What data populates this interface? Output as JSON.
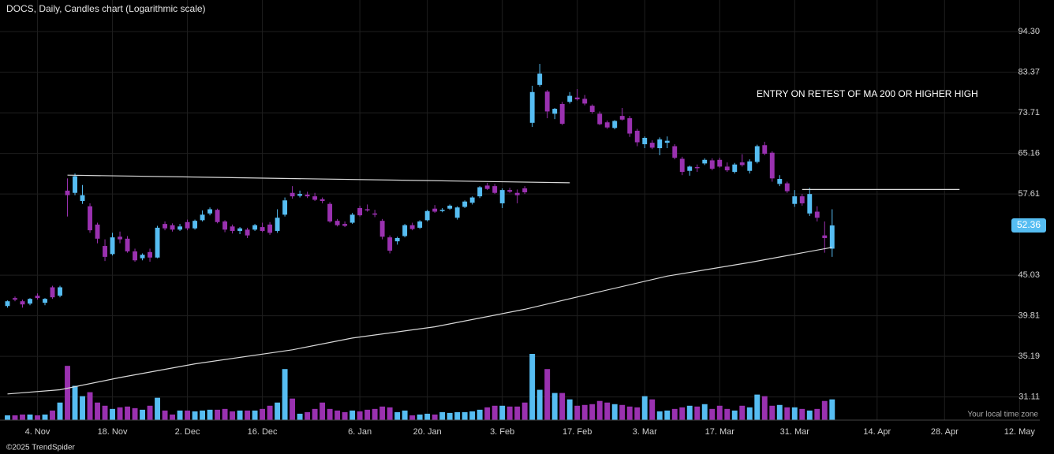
{
  "chart_data": {
    "type": "candlestick",
    "title": "DOCS, Daily, Candles chart (Logarithmic scale)",
    "annotation": "ENTRY ON RETEST OF MA 200 OR HIGHER HIGH",
    "timezone_note": "Your local time zone",
    "copyright": "©2025 TrendSpider",
    "log_scale": true,
    "grid": true,
    "up_color": "#56bdf2",
    "down_color": "#9a31b0",
    "line_color": "#d9d9d9",
    "ylim": [
      29.0,
      103.8
    ],
    "yticks": [
      {
        "value": 94.3,
        "label": "94.30"
      },
      83.37,
      73.71,
      65.16,
      57.61,
      45.03,
      39.81,
      35.19,
      31.11
    ],
    "xlim": [
      -5,
      133.7
    ],
    "xticks": [
      {
        "value": 0,
        "label": "4. Nov"
      },
      {
        "value": 10,
        "label": "18. Nov"
      },
      {
        "value": 20,
        "label": "2. Dec"
      },
      {
        "value": 30,
        "label": "16. Dec"
      },
      {
        "value": 43,
        "label": "6. Jan"
      },
      {
        "value": 52,
        "label": "20. Jan"
      },
      {
        "value": 62,
        "label": "3. Feb"
      },
      {
        "value": 72,
        "label": "17. Feb"
      },
      {
        "value": 81,
        "label": "3. Mar"
      },
      {
        "value": 91,
        "label": "17. Mar"
      },
      {
        "value": 101,
        "label": "31. Mar"
      },
      {
        "value": 112,
        "label": "14. Apr"
      },
      {
        "value": 121,
        "label": "28. Apr"
      },
      {
        "value": 131,
        "label": "12. May"
      }
    ],
    "x": [
      -4,
      -3,
      -2,
      -1,
      0,
      1,
      2,
      3,
      4,
      5,
      6,
      7,
      8,
      9,
      10,
      11,
      12,
      13,
      14,
      15,
      16,
      17,
      18,
      19,
      20,
      21,
      22,
      23,
      24,
      25,
      26,
      27,
      28,
      29,
      30,
      31,
      32,
      33,
      34,
      35,
      36,
      37,
      38,
      39,
      40,
      41,
      42,
      43,
      44,
      45,
      46,
      47,
      48,
      49,
      50,
      51,
      52,
      53,
      54,
      55,
      56,
      57,
      58,
      59,
      60,
      61,
      62,
      63,
      64,
      65,
      66,
      67,
      68,
      69,
      70,
      71,
      72,
      73,
      74,
      75,
      76,
      77,
      78,
      79,
      80,
      81,
      82,
      83,
      84,
      85,
      86,
      87,
      88,
      89,
      90,
      91,
      92,
      93,
      94,
      95,
      96,
      97,
      98,
      99,
      100,
      101,
      102,
      103,
      104,
      105,
      106
    ],
    "candles": [
      [
        41.0,
        41.7,
        40.8,
        41.6,
        6
      ],
      [
        42.0,
        42.2,
        41.6,
        41.8,
        6
      ],
      [
        41.6,
        41.8,
        40.8,
        41.2,
        7
      ],
      [
        41.3,
        42.0,
        41.1,
        41.9,
        7
      ],
      [
        42.3,
        42.6,
        41.8,
        42.0,
        6
      ],
      [
        41.4,
        42.0,
        41.1,
        41.9,
        7
      ],
      [
        43.4,
        43.6,
        41.9,
        42.1,
        12
      ],
      [
        42.3,
        43.6,
        42.1,
        43.4,
        22
      ],
      [
        58.2,
        60.4,
        53.8,
        57.4,
        68
      ],
      [
        57.8,
        61.3,
        57.4,
        60.8,
        43
      ],
      [
        56.4,
        59.2,
        55.9,
        57.4,
        30
      ],
      [
        55.5,
        56.0,
        51.2,
        51.6,
        35
      ],
      [
        52.5,
        52.8,
        49.6,
        50.3,
        22
      ],
      [
        49.2,
        50.2,
        47.0,
        47.6,
        18
      ],
      [
        48.0,
        51.2,
        47.8,
        50.5,
        14
      ],
      [
        50.6,
        51.4,
        49.6,
        50.2,
        16
      ],
      [
        50.3,
        50.7,
        48.2,
        48.4,
        17
      ],
      [
        48.4,
        48.8,
        46.9,
        47.1,
        15
      ],
      [
        47.4,
        48.1,
        47.1,
        47.9,
        13
      ],
      [
        48.3,
        48.8,
        46.9,
        47.5,
        18
      ],
      [
        47.5,
        52.3,
        47.4,
        52.0,
        28
      ],
      [
        52.6,
        53.0,
        51.6,
        51.9,
        12
      ],
      [
        52.4,
        52.7,
        51.4,
        51.7,
        7
      ],
      [
        51.7,
        52.6,
        51.5,
        52.2,
        12
      ],
      [
        52.9,
        53.3,
        51.6,
        51.9,
        12
      ],
      [
        51.9,
        53.3,
        51.7,
        53.1,
        11
      ],
      [
        53.2,
        54.8,
        53.0,
        54.1,
        12
      ],
      [
        54.3,
        55.3,
        54.0,
        55.0,
        13
      ],
      [
        54.9,
        55.1,
        52.7,
        52.9,
        13
      ],
      [
        53.0,
        53.2,
        51.3,
        51.7,
        14
      ],
      [
        52.2,
        52.5,
        51.1,
        51.5,
        11
      ],
      [
        51.5,
        52.1,
        51.0,
        51.9,
        12
      ],
      [
        51.7,
        52.0,
        50.4,
        50.8,
        12
      ],
      [
        51.7,
        52.6,
        51.5,
        52.4,
        12
      ],
      [
        52.1,
        52.8,
        51.3,
        51.5,
        14
      ],
      [
        52.5,
        52.9,
        50.9,
        51.2,
        18
      ],
      [
        51.5,
        55.0,
        51.2,
        53.6,
        22
      ],
      [
        54.1,
        57.0,
        53.8,
        56.5,
        64
      ],
      [
        57.8,
        59.0,
        56.8,
        57.2,
        27
      ],
      [
        57.3,
        58.2,
        57.0,
        57.6,
        8
      ],
      [
        57.5,
        58.0,
        56.9,
        57.2,
        10
      ],
      [
        57.2,
        57.8,
        56.4,
        56.6,
        14
      ],
      [
        56.7,
        57.0,
        56.0,
        56.4,
        22
      ],
      [
        55.9,
        56.2,
        52.8,
        53.0,
        14
      ],
      [
        53.1,
        53.4,
        52.2,
        52.4,
        12
      ],
      [
        52.6,
        53.0,
        52.1,
        52.3,
        10
      ],
      [
        52.8,
        54.4,
        52.6,
        54.1,
        12
      ],
      [
        55.2,
        55.6,
        53.8,
        54.0,
        11
      ],
      [
        55.0,
        55.8,
        54.6,
        54.8,
        13
      ],
      [
        54.3,
        54.9,
        53.7,
        54.1,
        14
      ],
      [
        53.1,
        53.4,
        50.2,
        50.6,
        17
      ],
      [
        50.5,
        50.8,
        48.1,
        48.5,
        16
      ],
      [
        49.9,
        50.6,
        49.4,
        50.4,
        10
      ],
      [
        50.7,
        52.6,
        50.5,
        52.4,
        12
      ],
      [
        52.4,
        52.8,
        51.6,
        51.8,
        6
      ],
      [
        52.0,
        53.2,
        51.8,
        53.0,
        7
      ],
      [
        53.2,
        54.9,
        53.0,
        54.7,
        8
      ],
      [
        55.1,
        55.7,
        54.4,
        54.6,
        7
      ],
      [
        54.7,
        55.2,
        54.5,
        54.9,
        10
      ],
      [
        55.1,
        55.8,
        54.9,
        55.6,
        9
      ],
      [
        53.6,
        55.5,
        53.3,
        55.3,
        10
      ],
      [
        55.4,
        56.5,
        55.2,
        56.3,
        10
      ],
      [
        56.1,
        57.2,
        55.8,
        57.0,
        11
      ],
      [
        57.2,
        59.0,
        56.9,
        58.8,
        13
      ],
      [
        59.1,
        59.6,
        58.3,
        58.5,
        16
      ],
      [
        59.0,
        59.4,
        57.6,
        57.8,
        18
      ],
      [
        56.0,
        58.6,
        55.2,
        58.3,
        18
      ],
      [
        58.3,
        58.7,
        57.8,
        58.0,
        17
      ],
      [
        57.8,
        58.4,
        56.0,
        57.4,
        17
      ],
      [
        58.6,
        59.0,
        57.6,
        57.9,
        22
      ],
      [
        71.5,
        80.0,
        70.6,
        78.5,
        83
      ],
      [
        80.2,
        85.5,
        79.8,
        83.0,
        38
      ],
      [
        78.6,
        79.0,
        72.5,
        74.0,
        64
      ],
      [
        73.5,
        74.8,
        72.3,
        74.6,
        34
      ],
      [
        75.7,
        76.2,
        71.0,
        71.3,
        34
      ],
      [
        76.2,
        78.5,
        75.8,
        77.6,
        26
      ],
      [
        77.2,
        79.2,
        76.5,
        76.8,
        18
      ],
      [
        76.9,
        77.8,
        75.4,
        75.8,
        19
      ],
      [
        75.3,
        75.6,
        73.5,
        73.9,
        20
      ],
      [
        73.5,
        74.0,
        71.0,
        71.2,
        24
      ],
      [
        71.6,
        72.0,
        70.2,
        70.5,
        22
      ],
      [
        70.4,
        72.1,
        70.1,
        71.9,
        20
      ],
      [
        73.0,
        74.8,
        72.0,
        72.2,
        19
      ],
      [
        72.5,
        73.0,
        68.5,
        69.2,
        17
      ],
      [
        69.8,
        70.2,
        66.6,
        67.4,
        16
      ],
      [
        67.0,
        68.6,
        66.2,
        68.3,
        30
      ],
      [
        67.3,
        67.8,
        66.0,
        66.3,
        26
      ],
      [
        66.2,
        68.4,
        64.8,
        68.0,
        11
      ],
      [
        67.3,
        68.6,
        66.2,
        67.7,
        12
      ],
      [
        66.6,
        67.0,
        64.0,
        64.3,
        14
      ],
      [
        64.1,
        64.5,
        61.0,
        61.6,
        16
      ],
      [
        61.8,
        62.8,
        60.9,
        62.6,
        18
      ],
      [
        62.5,
        63.0,
        61.6,
        62.3,
        17
      ],
      [
        63.2,
        64.2,
        62.9,
        63.9,
        20
      ],
      [
        63.8,
        64.2,
        61.9,
        62.2,
        14
      ],
      [
        63.9,
        64.3,
        62.4,
        62.6,
        18
      ],
      [
        62.6,
        63.4,
        61.6,
        61.9,
        14
      ],
      [
        61.6,
        63.3,
        61.3,
        63.0,
        12
      ],
      [
        63.4,
        65.0,
        62.6,
        62.9,
        18
      ],
      [
        61.8,
        64.0,
        61.3,
        63.6,
        16
      ],
      [
        63.5,
        66.9,
        63.2,
        66.6,
        32
      ],
      [
        66.8,
        67.5,
        64.8,
        65.1,
        30
      ],
      [
        65.3,
        65.6,
        59.8,
        60.4,
        18
      ],
      [
        59.4,
        61.0,
        59.0,
        60.3,
        19
      ],
      [
        59.5,
        59.8,
        57.8,
        58.1,
        16
      ],
      [
        55.9,
        58.3,
        55.4,
        57.2,
        16
      ],
      [
        57.2,
        57.6,
        55.6,
        56.0,
        14
      ],
      [
        54.3,
        58.7,
        53.9,
        57.6,
        12
      ],
      [
        54.6,
        55.5,
        53.0,
        53.6,
        14
      ],
      [
        50.8,
        53.0,
        48.2,
        50.4,
        24
      ],
      [
        48.8,
        55.0,
        47.6,
        52.36,
        26
      ]
    ],
    "overlays": [
      {
        "x": [
          -4,
          3,
          11,
          21,
          34,
          42,
          53,
          65,
          74,
          84,
          95,
          106
        ],
        "y": [
          31.4,
          31.8,
          33.0,
          34.4,
          35.9,
          37.2,
          38.5,
          40.6,
          42.6,
          44.9,
          46.8,
          49.0
        ]
      },
      {
        "x": [
          4,
          71
        ],
        "y": [
          61.0,
          59.6
        ]
      },
      {
        "x": [
          102,
          123
        ],
        "y": [
          58.4,
          58.4
        ]
      }
    ]
  }
}
